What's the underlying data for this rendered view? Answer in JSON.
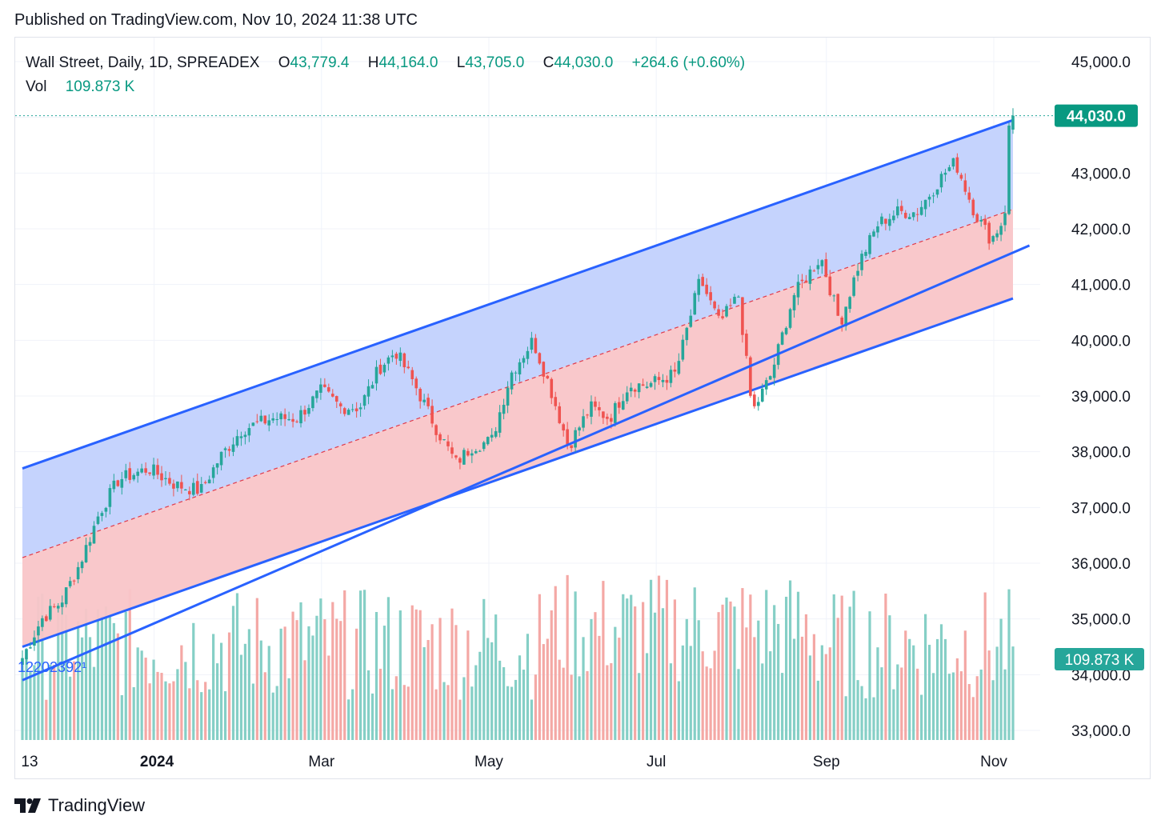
{
  "header": {
    "published": "Published on TradingView.com, Nov 10, 2024 11:38 UTC"
  },
  "legend": {
    "symbol": "Wall Street, Daily, 1D, SPREADEX",
    "open_label": "O",
    "open": "43,779.4",
    "high_label": "H",
    "high": "44,164.0",
    "low_label": "L",
    "low": "43,705.0",
    "close_label": "C",
    "close": "44,030.0",
    "change": "+264.6 (+0.60%)",
    "vol_label": "Vol",
    "vol": "109.873 K"
  },
  "price_badge": "44,030.0",
  "volume_badge": "109.873 K",
  "pane_marker": "12202392¹",
  "footer": {
    "brand": "TradingView"
  },
  "colors": {
    "up": "#26a69a",
    "down": "#ef5350",
    "channel_line": "#2962ff",
    "upper_fill": "#c2d1fd",
    "lower_fill": "#f9c5c8",
    "midline": "#e03a4a",
    "trendline": "#5b4fc9",
    "badge": "#089981"
  },
  "chart_data": {
    "type": "candlestick",
    "title": "Wall Street, Daily, 1D, SPREADEX",
    "y_axis_ticks": [
      "45,000.0",
      "44,000.0",
      "43,000.0",
      "42,000.0",
      "41,000.0",
      "40,000.0",
      "39,000.0",
      "38,000.0",
      "37,000.0",
      "36,000.0",
      "35,000.0",
      "34,000.0",
      "33,000.0"
    ],
    "ylim": [
      32800,
      45400
    ],
    "x_axis_ticks": [
      "13",
      "2024",
      "Mar",
      "May",
      "Jul",
      "Sep",
      "Nov"
    ],
    "date_range": [
      "2023-11-13",
      "2024-11-08"
    ],
    "last": {
      "open": 43779.4,
      "high": 44164.0,
      "low": 43705.0,
      "close": 44030.0,
      "change": 264.6,
      "change_pct": 0.6,
      "volume": "109.873 K"
    },
    "channel": {
      "upper": [
        [
          "2023-11-13",
          37700
        ],
        [
          "2024-11-08",
          43950
        ]
      ],
      "mid": [
        [
          "2023-11-13",
          36100
        ],
        [
          "2024-11-08",
          42350
        ]
      ],
      "lower": [
        [
          "2023-11-13",
          34500
        ],
        [
          "2024-11-08",
          40750
        ]
      ]
    },
    "trendline": [
      [
        "2023-11-13",
        33900
      ],
      [
        "2024-11-14",
        41700
      ]
    ],
    "approx_closes": [
      [
        "2023-11-13",
        34300
      ],
      [
        "2023-11-20",
        35000
      ],
      [
        "2023-11-27",
        35300
      ],
      [
        "2023-12-04",
        36000
      ],
      [
        "2023-12-11",
        36900
      ],
      [
        "2023-12-18",
        37500
      ],
      [
        "2023-12-29",
        37700
      ],
      [
        "2024-01-08",
        37400
      ],
      [
        "2024-01-17",
        37300
      ],
      [
        "2024-01-24",
        37900
      ],
      [
        "2024-02-01",
        38400
      ],
      [
        "2024-02-12",
        38600
      ],
      [
        "2024-02-21",
        38600
      ],
      [
        "2024-03-01",
        39100
      ],
      [
        "2024-03-08",
        38800
      ],
      [
        "2024-03-15",
        38800
      ],
      [
        "2024-03-22",
        39500
      ],
      [
        "2024-03-28",
        39800
      ],
      [
        "2024-04-04",
        39200
      ],
      [
        "2024-04-12",
        38400
      ],
      [
        "2024-04-19",
        37800
      ],
      [
        "2024-04-25",
        38100
      ],
      [
        "2024-05-02",
        38200
      ],
      [
        "2024-05-09",
        39400
      ],
      [
        "2024-05-17",
        40000
      ],
      [
        "2024-05-23",
        39200
      ],
      [
        "2024-05-30",
        38100
      ],
      [
        "2024-06-07",
        38800
      ],
      [
        "2024-06-14",
        38600
      ],
      [
        "2024-06-21",
        39200
      ],
      [
        "2024-06-28",
        39200
      ],
      [
        "2024-07-08",
        39400
      ],
      [
        "2024-07-17",
        41100
      ],
      [
        "2024-07-24",
        40300
      ],
      [
        "2024-07-31",
        40800
      ],
      [
        "2024-08-05",
        38700
      ],
      [
        "2024-08-12",
        39400
      ],
      [
        "2024-08-20",
        40800
      ],
      [
        "2024-08-30",
        41500
      ],
      [
        "2024-09-06",
        40300
      ],
      [
        "2024-09-13",
        41400
      ],
      [
        "2024-09-20",
        42100
      ],
      [
        "2024-09-27",
        42300
      ],
      [
        "2024-10-04",
        42300
      ],
      [
        "2024-10-14",
        43000
      ],
      [
        "2024-10-18",
        43200
      ],
      [
        "2024-10-25",
        42300
      ],
      [
        "2024-10-31",
        41800
      ],
      [
        "2024-11-05",
        42200
      ],
      [
        "2024-11-06",
        43700
      ],
      [
        "2024-11-08",
        44030
      ]
    ]
  }
}
